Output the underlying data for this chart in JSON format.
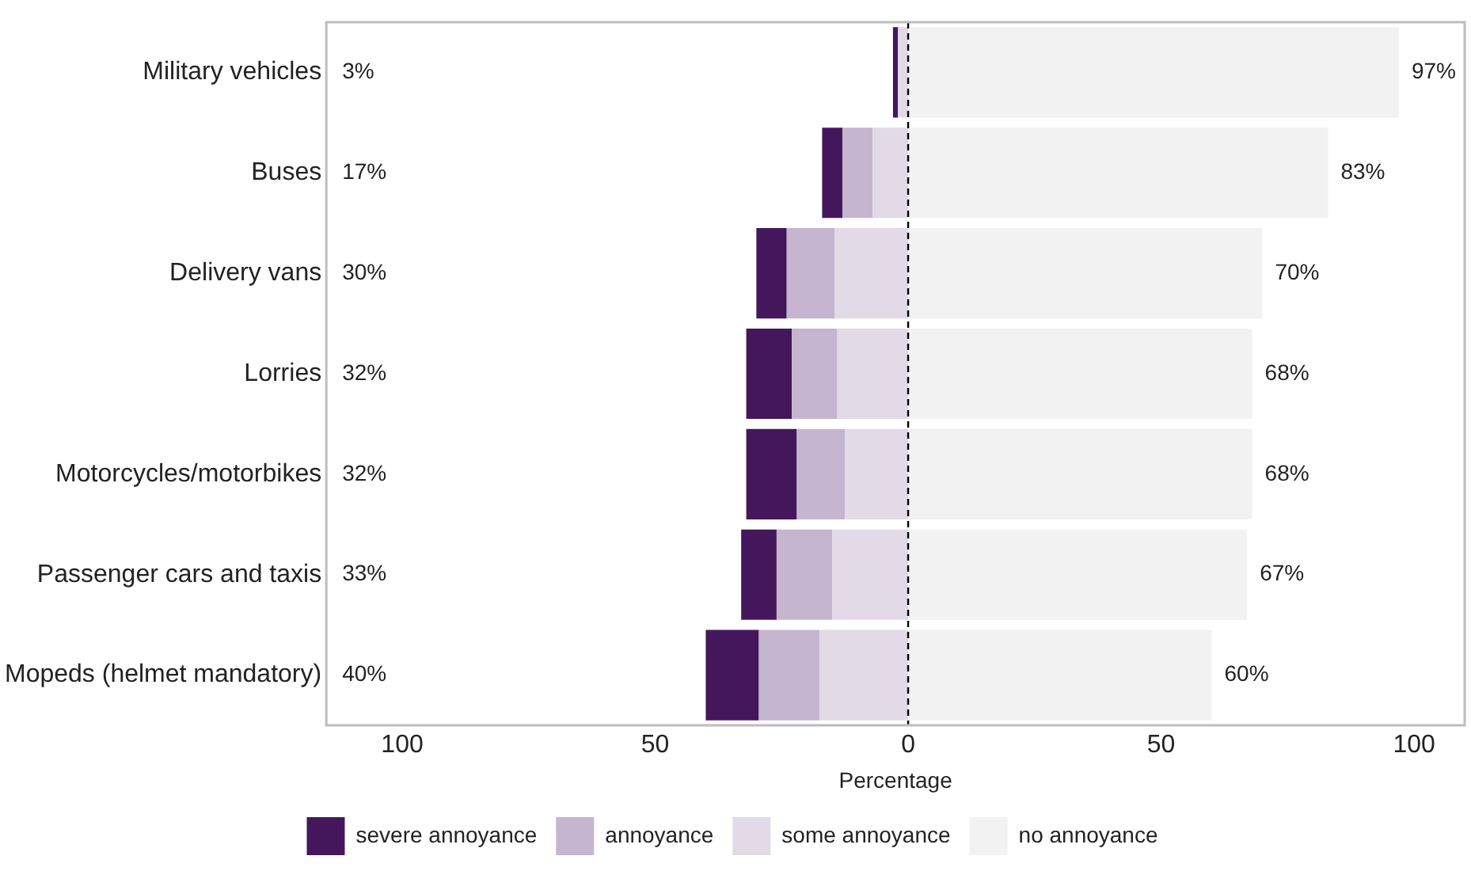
{
  "chart_data": {
    "type": "bar",
    "orientation": "horizontal",
    "stacked": true,
    "xlabel": "Percentage",
    "categories": [
      "Military vehicles",
      "Buses",
      "Delivery vans",
      "Lorries",
      "Motorcycles/motorbikes",
      "Passenger cars and taxis",
      "Mopeds (helmet mandatory)"
    ],
    "series": [
      {
        "name": "some annoyance",
        "color": "#e2dae6",
        "values": [
          -2,
          -7,
          -14.5,
          -14,
          -12.5,
          -15,
          -17.5
        ]
      },
      {
        "name": "annoyance",
        "color": "#c5b5cf",
        "values": [
          null,
          -6,
          -9.5,
          -9,
          -9.5,
          -11,
          -12
        ]
      },
      {
        "name": "severe annoyance",
        "color": "#44175c",
        "values": [
          -1,
          -4,
          -6,
          -9,
          -10,
          -7,
          -10.5
        ]
      },
      {
        "name": "no annoyance",
        "color": "#f2f2f2",
        "values": [
          97,
          83,
          70,
          68,
          68,
          67,
          60
        ],
        "value_labels": [
          "97%",
          "83%",
          "70%",
          "68%",
          "68%",
          "67%",
          "60%"
        ]
      }
    ],
    "annotations": [
      "3%",
      "17%",
      "30%",
      "32%",
      "32%",
      "33%",
      "40%"
    ],
    "xlim": [
      -115,
      110
    ],
    "xticks": [
      {
        "value": -100,
        "label": "100"
      },
      {
        "value": -50,
        "label": "50"
      },
      0,
      50,
      100
    ],
    "ref_lines": [
      {
        "axis": "x",
        "value": 0,
        "line_style": "dashed",
        "color": "#000000"
      }
    ],
    "grid": false,
    "legend": "bottom"
  }
}
